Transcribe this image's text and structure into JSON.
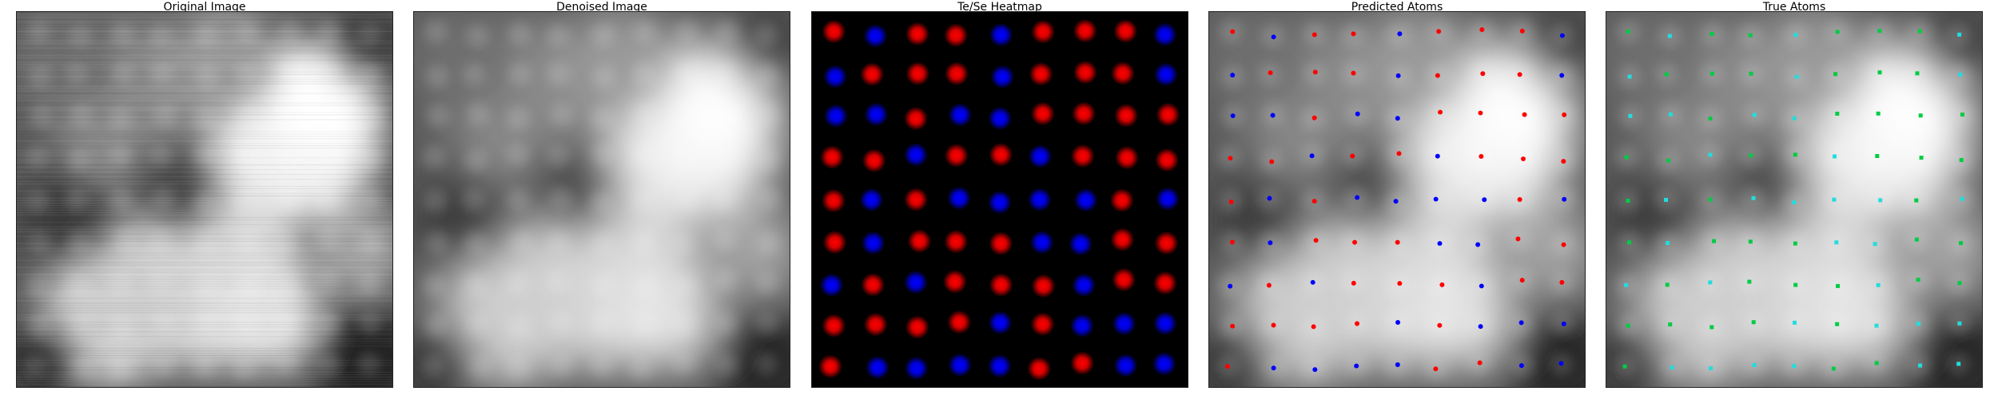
{
  "panels": [
    {
      "id": "original",
      "title": "Original Image"
    },
    {
      "id": "denoised",
      "title": "Denoised Image"
    },
    {
      "id": "heatmap",
      "title": "Te/Se Heatmap"
    },
    {
      "id": "predicted",
      "title": "Predicted Atoms"
    },
    {
      "id": "true",
      "title": "True Atoms"
    }
  ],
  "colors": {
    "te": "#ff0000",
    "se": "#0000ff",
    "true_te": "#00cc44",
    "true_se": "#22dddd",
    "heatmap_bg": "#000000"
  }
}
